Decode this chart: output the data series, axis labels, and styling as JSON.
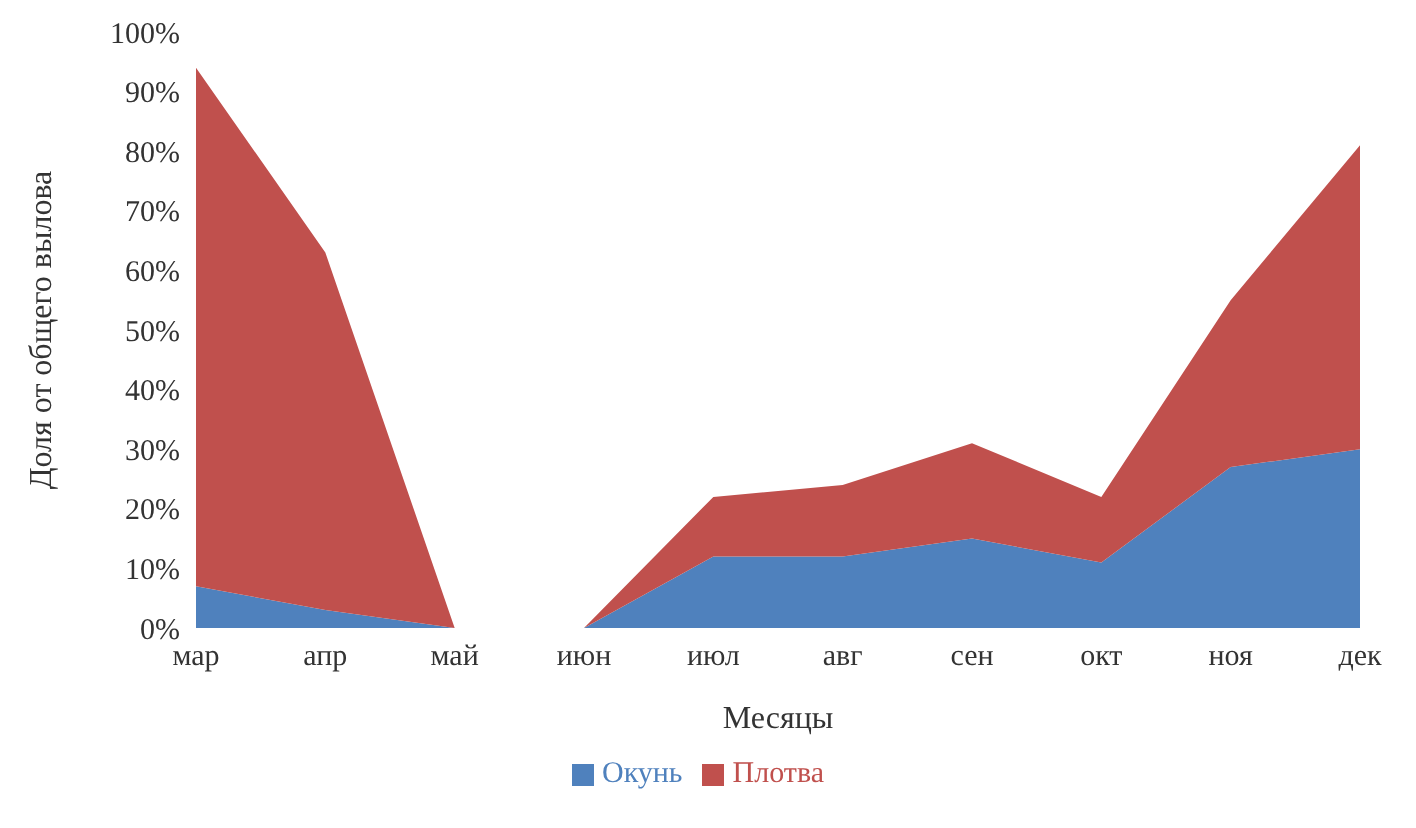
{
  "chart_data": {
    "type": "area",
    "stacked": true,
    "xlabel": "Месяцы",
    "ylabel": "Доля от общего вылова",
    "categories": [
      "мар",
      "апр",
      "май",
      "июн",
      "июл",
      "авг",
      "сен",
      "окт",
      "ноя",
      "дек"
    ],
    "series": [
      {
        "name": "Окунь",
        "color": "#4f81bd",
        "values": [
          7,
          3,
          0,
          0,
          12,
          12,
          15,
          11,
          27,
          30
        ]
      },
      {
        "name": "Плотва",
        "color": "#c0504d",
        "values": [
          87,
          60,
          0,
          0,
          10,
          12,
          16,
          11,
          28,
          51
        ]
      }
    ],
    "ylim": [
      0,
      100
    ],
    "yticks": [
      {
        "value": 0,
        "label": "0%"
      },
      {
        "value": 10,
        "label": "10%"
      },
      {
        "value": 20,
        "label": "20%"
      },
      {
        "value": 30,
        "label": "30%"
      },
      {
        "value": 40,
        "label": "40%"
      },
      {
        "value": 50,
        "label": "50%"
      },
      {
        "value": 60,
        "label": "60%"
      },
      {
        "value": 70,
        "label": "70%"
      },
      {
        "value": 80,
        "label": "80%"
      },
      {
        "value": 90,
        "label": "90%"
      },
      {
        "value": 100,
        "label": "100%"
      }
    ],
    "grid": false,
    "legend": "bottom"
  }
}
